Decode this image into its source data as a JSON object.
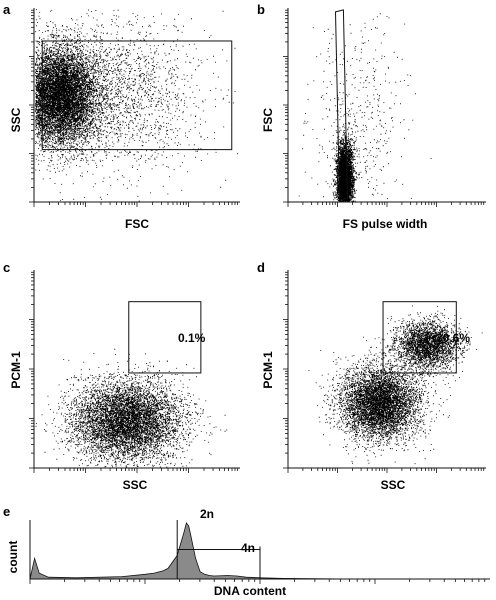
{
  "figure": {
    "panels": [
      {
        "id": "a",
        "letter": "a",
        "xlabel": "FSC",
        "ylabel": "SSC"
      },
      {
        "id": "b",
        "letter": "b",
        "xlabel": "FS pulse width",
        "ylabel": "FSC"
      },
      {
        "id": "c",
        "letter": "c",
        "xlabel": "SSC",
        "ylabel": "PCM-1",
        "gate_percent": "0.1%"
      },
      {
        "id": "d",
        "letter": "d",
        "xlabel": "SSC",
        "ylabel": "PCM-1",
        "gate_percent": "30.6%"
      },
      {
        "id": "e",
        "letter": "e",
        "xlabel": "DNA content",
        "ylabel": "count",
        "peak_labels": [
          "2n",
          "4n"
        ]
      }
    ]
  },
  "chart_data": [
    {
      "id": "a",
      "type": "scatter",
      "xlabel": "FSC",
      "ylabel": "SSC",
      "xlim": [
        0,
        1
      ],
      "ylim": [
        0,
        1
      ],
      "grid": false,
      "populations": [
        {
          "center": [
            0.12,
            0.55
          ],
          "spread": [
            0.09,
            0.12
          ],
          "count": 9000
        },
        {
          "center": [
            0.35,
            0.55
          ],
          "spread": [
            0.22,
            0.2
          ],
          "count": 2500
        }
      ],
      "gate": {
        "shape": "rectangle",
        "x": [
          0.04,
          0.96
        ],
        "y": [
          0.27,
          0.83
        ]
      }
    },
    {
      "id": "b",
      "type": "scatter",
      "xlabel": "FS pulse width",
      "ylabel": "FSC",
      "xlim": [
        0,
        1
      ],
      "ylim": [
        0,
        1
      ],
      "grid": false,
      "populations": [
        {
          "center": [
            0.285,
            0.12
          ],
          "spread": [
            0.02,
            0.09
          ],
          "count": 5000
        },
        {
          "center": [
            0.35,
            0.35
          ],
          "spread": [
            0.12,
            0.3
          ],
          "count": 500
        }
      ],
      "gate": {
        "shape": "polygon",
        "points": [
          [
            0.24,
            0.98
          ],
          [
            0.28,
            0.99
          ],
          [
            0.3,
            0.02
          ],
          [
            0.26,
            0.01
          ]
        ]
      }
    },
    {
      "id": "c",
      "type": "scatter",
      "xlabel": "SSC",
      "ylabel": "PCM-1",
      "xlim": [
        0,
        1
      ],
      "ylim": [
        0,
        1
      ],
      "grid": false,
      "populations": [
        {
          "center": [
            0.45,
            0.24
          ],
          "spread": [
            0.13,
            0.1
          ],
          "count": 7000
        }
      ],
      "gate": {
        "shape": "rectangle",
        "x": [
          0.46,
          0.81
        ],
        "y": [
          0.48,
          0.84
        ]
      },
      "gate_percent": 0.1
    },
    {
      "id": "d",
      "type": "scatter",
      "xlabel": "SSC",
      "ylabel": "PCM-1",
      "xlim": [
        0,
        1
      ],
      "ylim": [
        0,
        1
      ],
      "grid": false,
      "populations": [
        {
          "center": [
            0.46,
            0.33
          ],
          "spread": [
            0.1,
            0.09
          ],
          "count": 6000
        },
        {
          "center": [
            0.7,
            0.62
          ],
          "spread": [
            0.08,
            0.06
          ],
          "count": 2800
        }
      ],
      "gate": {
        "shape": "rectangle",
        "x": [
          0.48,
          0.85
        ],
        "y": [
          0.48,
          0.84
        ]
      },
      "gate_percent": 30.6
    },
    {
      "id": "e",
      "type": "area",
      "xlabel": "DNA content",
      "ylabel": "count",
      "xlim": [
        0,
        1
      ],
      "ylim": [
        0,
        1
      ],
      "grid": false,
      "x": [
        0.0,
        0.01,
        0.02,
        0.04,
        0.1,
        0.2,
        0.25,
        0.27,
        0.29,
        0.3,
        0.32,
        0.335,
        0.34,
        0.345,
        0.35,
        0.36,
        0.37,
        0.38,
        0.39,
        0.4,
        0.43,
        0.45,
        0.47,
        0.5,
        0.55,
        0.7,
        1.0
      ],
      "y": [
        0.0,
        0.35,
        0.1,
        0.03,
        0.02,
        0.04,
        0.08,
        0.1,
        0.14,
        0.18,
        0.4,
        0.8,
        0.95,
        0.9,
        0.72,
        0.35,
        0.12,
        0.08,
        0.06,
        0.05,
        0.06,
        0.05,
        0.03,
        0.02,
        0.01,
        0.0,
        0.0
      ],
      "gate_markers": {
        "left": 0.32,
        "right": 0.5,
        "split_y": 0.5
      },
      "peak_labels": [
        "2n",
        "4n"
      ]
    }
  ]
}
